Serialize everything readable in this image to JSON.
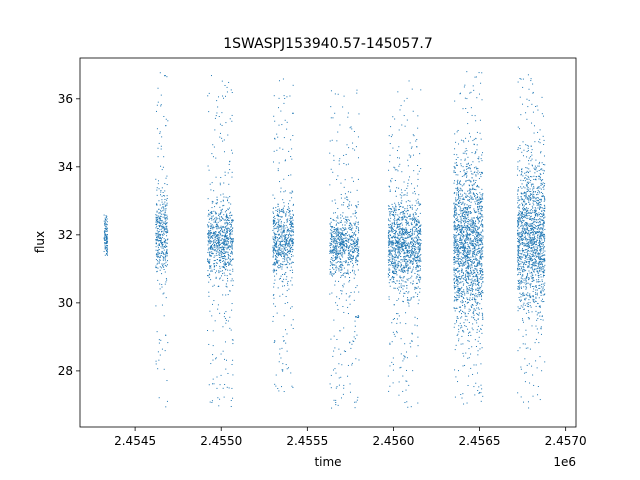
{
  "chart_data": {
    "type": "scatter",
    "title": "1SWASPJ153940.57-145057.7",
    "xlabel": "time",
    "ylabel": "flux",
    "x_offset_label": "1e6",
    "xlim": [
      2454180,
      2457060
    ],
    "ylim": [
      26.35,
      37.2
    ],
    "x_ticks": [
      {
        "value": 2454500,
        "label": "2.4545"
      },
      {
        "value": 2455000,
        "label": "2.4550"
      },
      {
        "value": 2455500,
        "label": "2.4555"
      },
      {
        "value": 2456000,
        "label": "2.4560"
      },
      {
        "value": 2456500,
        "label": "2.4565"
      },
      {
        "value": 2457000,
        "label": "2.4570"
      }
    ],
    "y_ticks": [
      {
        "value": 28,
        "label": "28"
      },
      {
        "value": 30,
        "label": "30"
      },
      {
        "value": 32,
        "label": "32"
      },
      {
        "value": 34,
        "label": "34"
      },
      {
        "value": 36,
        "label": "36"
      }
    ],
    "grid": false,
    "legend": "none",
    "marker_color": "#1f77b4",
    "series": [
      {
        "segments": [
          {
            "x_start": 2454320,
            "x_end": 2454340,
            "y_center": 32.0,
            "core_spread": 0.3,
            "min": 31.4,
            "max": 32.6
          },
          {
            "x_start": 2454620,
            "x_end": 2454690,
            "y_center": 32.0,
            "core_spread": 0.6,
            "min": 26.9,
            "max": 36.8
          },
          {
            "x_start": 2454920,
            "x_end": 2455070,
            "y_center": 31.8,
            "core_spread": 0.55,
            "min": 26.9,
            "max": 36.7
          },
          {
            "x_start": 2455300,
            "x_end": 2455420,
            "y_center": 31.8,
            "core_spread": 0.55,
            "min": 27.3,
            "max": 36.6
          },
          {
            "x_start": 2455630,
            "x_end": 2455800,
            "y_center": 31.7,
            "core_spread": 0.45,
            "min": 26.9,
            "max": 36.3
          },
          {
            "x_start": 2455970,
            "x_end": 2456160,
            "y_center": 31.7,
            "core_spread": 0.7,
            "min": 26.9,
            "max": 36.6
          },
          {
            "x_start": 2456350,
            "x_end": 2456520,
            "y_center": 31.7,
            "core_spread": 1.2,
            "min": 26.9,
            "max": 36.9
          },
          {
            "x_start": 2456720,
            "x_end": 2456880,
            "y_center": 31.9,
            "core_spread": 1.1,
            "min": 26.9,
            "max": 36.8
          }
        ]
      }
    ]
  }
}
